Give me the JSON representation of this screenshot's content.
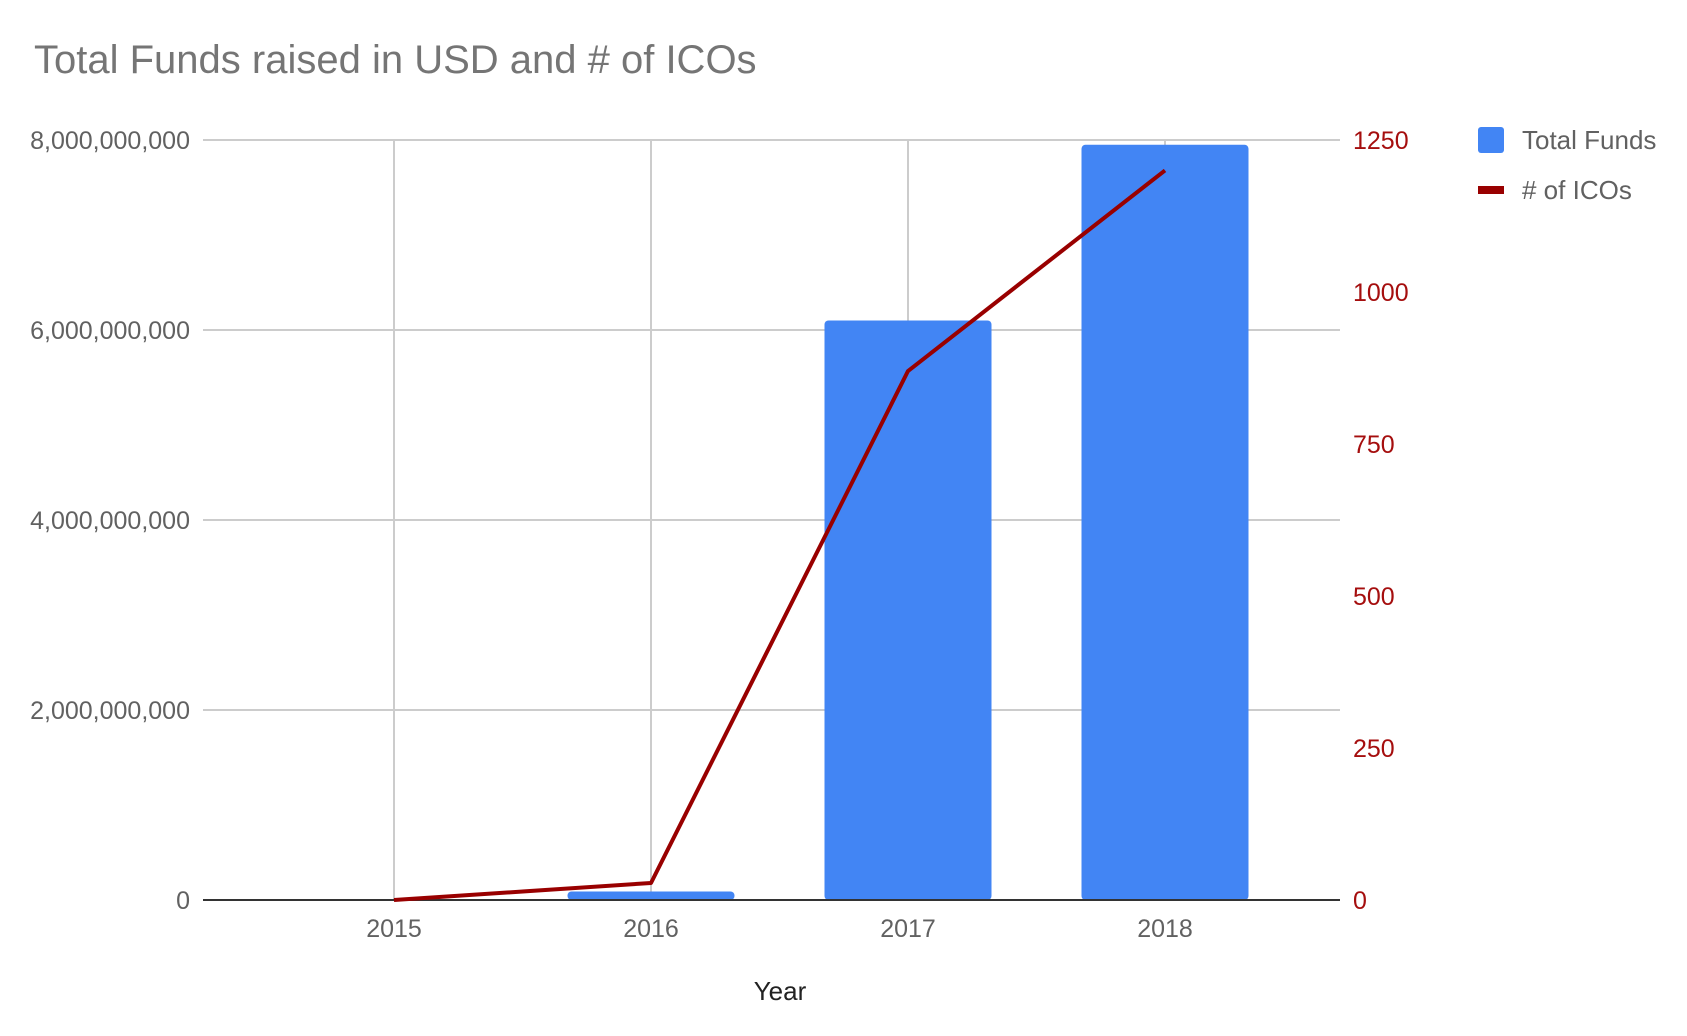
{
  "chart_data": {
    "type": "bar",
    "title": "Total Funds raised in USD and # of ICOs",
    "xlabel": "Year",
    "ylabel": "",
    "y2label": "",
    "categories": [
      "2015",
      "2016",
      "2017",
      "2018"
    ],
    "ylim": [
      0,
      8000000000
    ],
    "y2lim": [
      0,
      1250
    ],
    "yticks": [
      "0",
      "2,000,000,000",
      "4,000,000,000",
      "6,000,000,000",
      "8,000,000,000"
    ],
    "yticks_values": [
      0,
      2000000000,
      4000000000,
      6000000000,
      8000000000
    ],
    "y2ticks": [
      "0",
      "250",
      "500",
      "750",
      "1000",
      "1250"
    ],
    "y2ticks_values": [
      0,
      250,
      500,
      750,
      1000,
      1250
    ],
    "grid": true,
    "legend_position": "right",
    "series": [
      {
        "name": "Total Funds",
        "type": "bar",
        "axis": "left",
        "color": "#4285f4",
        "values": [
          0,
          90000000,
          6100000000,
          7950000000
        ]
      },
      {
        "name": "# of ICOs",
        "type": "line",
        "axis": "right",
        "color": "#990000",
        "values": [
          0,
          28,
          870,
          1200
        ]
      }
    ]
  }
}
